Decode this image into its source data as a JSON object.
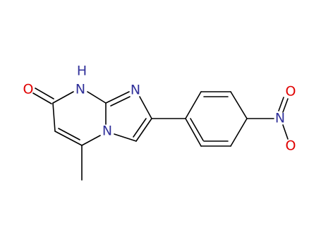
{
  "atoms": [
    "O",
    "N",
    "H",
    "N",
    "N",
    "N",
    "O",
    "O"
  ]
}
